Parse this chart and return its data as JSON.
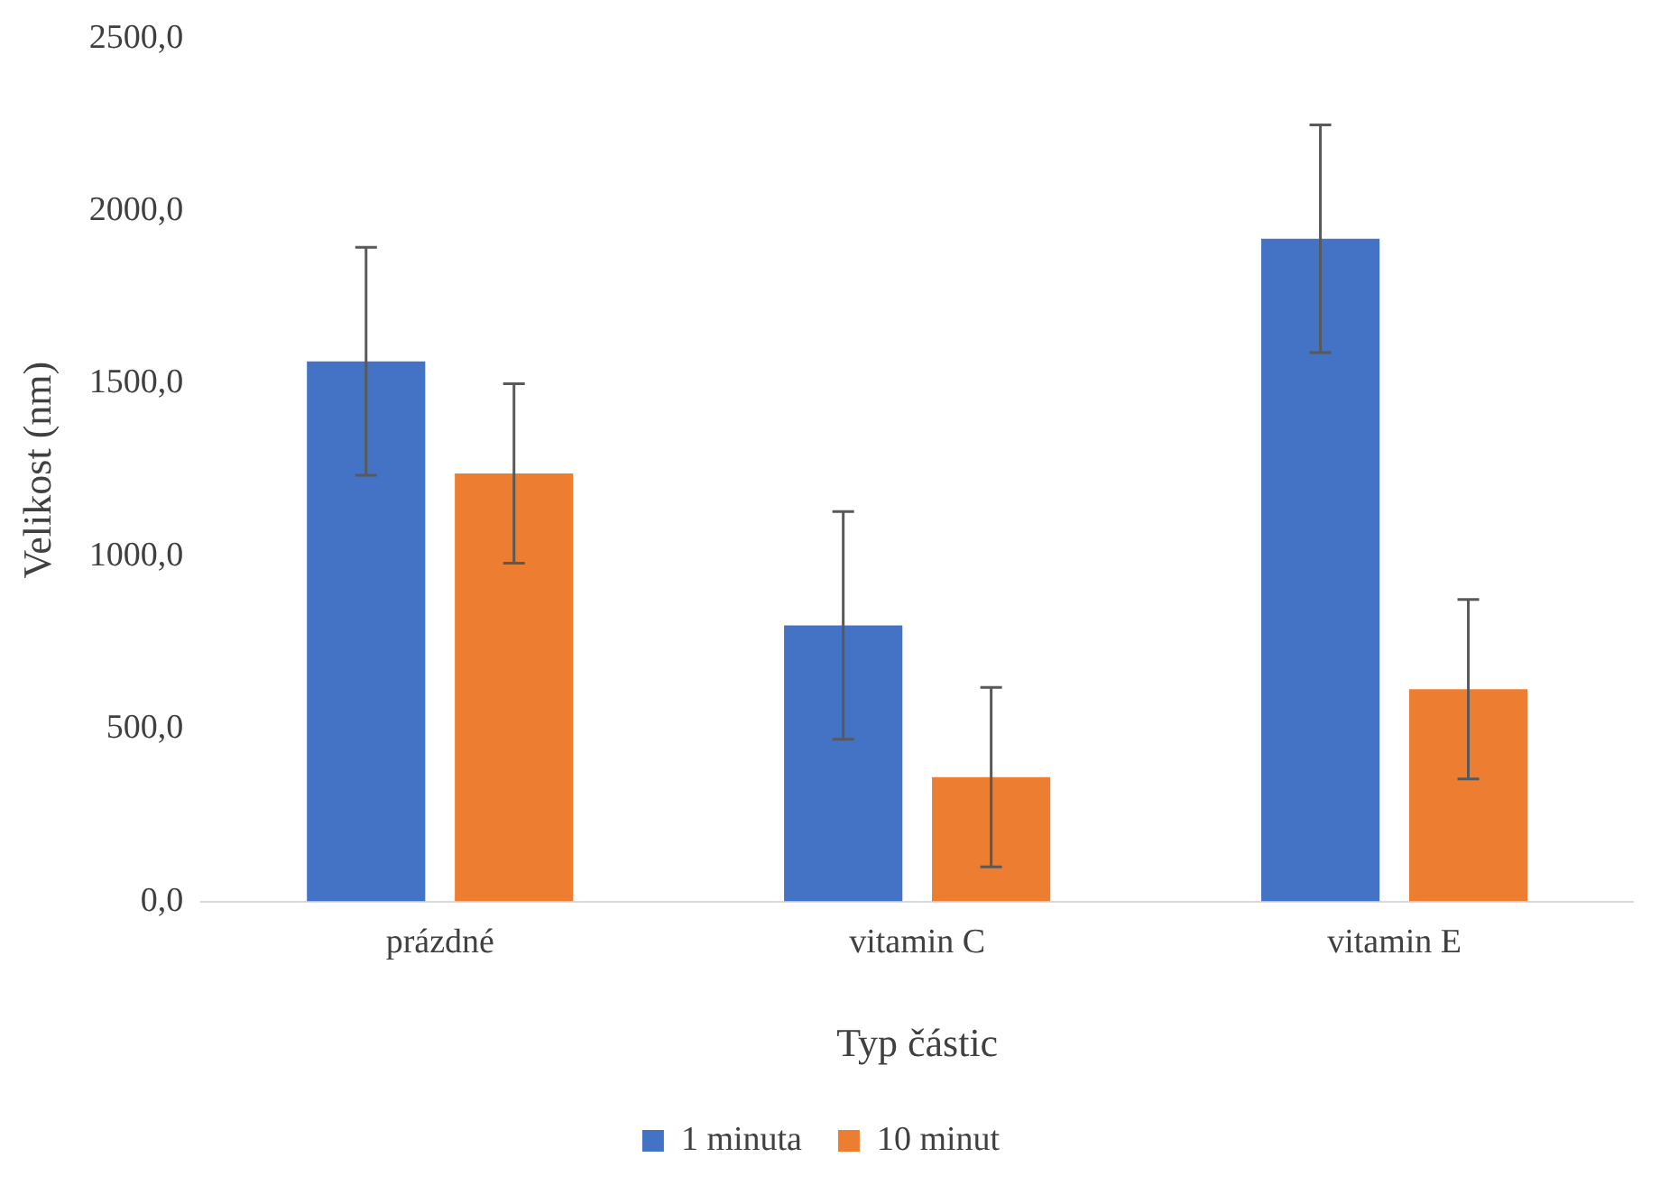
{
  "chart_data": {
    "type": "bar",
    "xlabel": "Typ částic",
    "ylabel": "Velikost (nm)",
    "categories": [
      "prázdné",
      "vitamin C",
      "vitamin E"
    ],
    "series": [
      {
        "name": "1 minuta",
        "color": "#4472c4",
        "values": [
          1565,
          800,
          1920
        ],
        "errors": [
          330,
          330,
          330
        ]
      },
      {
        "name": "10 minut",
        "color": "#ed7d31",
        "values": [
          1240,
          360,
          615
        ],
        "errors": [
          260,
          260,
          260
        ]
      }
    ],
    "ylim": [
      0,
      2500
    ],
    "yticks": [
      {
        "value": 0,
        "label": "0,0"
      },
      {
        "value": 500,
        "label": "500,0"
      },
      {
        "value": 1000,
        "label": "1000,0"
      },
      {
        "value": 1500,
        "label": "1500,0"
      },
      {
        "value": 2000,
        "label": "2000,0"
      },
      {
        "value": 2500,
        "label": "2500,0"
      }
    ],
    "grid": false,
    "legend": "bottom"
  }
}
